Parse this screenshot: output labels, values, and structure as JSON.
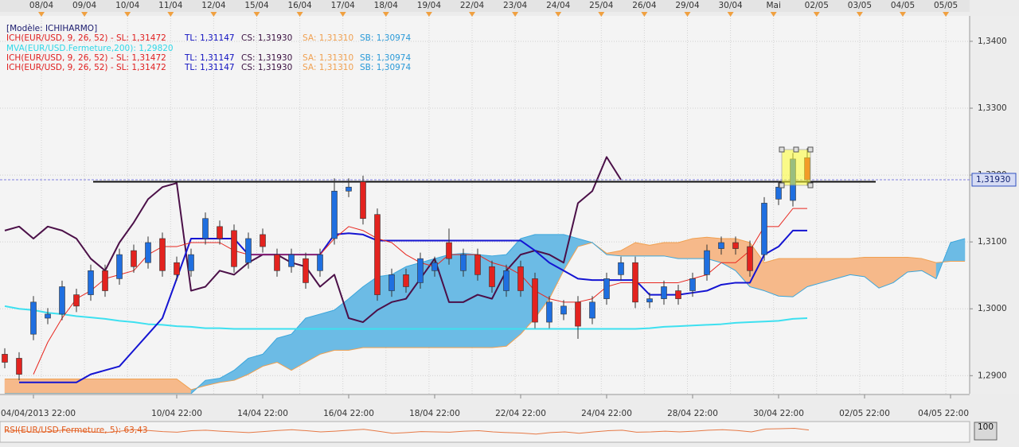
{
  "chart_data": {
    "type": "candlestick",
    "top_dates": [
      "08/04",
      "09/04",
      "10/04",
      "11/04",
      "12/04",
      "15/04",
      "16/04",
      "17/04",
      "18/04",
      "19/04",
      "22/04",
      "23/04",
      "24/04",
      "25/04",
      "26/04",
      "29/04",
      "30/04",
      "Mai",
      "02/05",
      "03/05",
      "04/05",
      "05/05"
    ],
    "legend": [
      [
        {
          "text": "[Modèle: ICHIHARMO]",
          "color": "#1a1a6e"
        }
      ],
      [
        {
          "text": "ICH(EUR/USD, 9, 26, 52) -  SL: 1,31472",
          "color": "#e02020"
        },
        {
          "text": "TL: 1,31147",
          "color": "#1010c0"
        },
        {
          "text": "CS: 1,31930",
          "color": "#3a1040"
        },
        {
          "text": "SA: 1,31310",
          "color": "#f0a050"
        },
        {
          "text": "SB: 1,30974",
          "color": "#2a9ad8"
        }
      ],
      [
        {
          "text": "MVA(EUR/USD.Fermeture,200): 1,29820",
          "color": "#30d8e8"
        }
      ],
      [
        {
          "text": "ICH(EUR/USD, 9, 26, 52) -  SL: 1,31472",
          "color": "#e02020"
        },
        {
          "text": "TL: 1,31147",
          "color": "#1010c0"
        },
        {
          "text": "CS: 1,31930",
          "color": "#3a1040"
        },
        {
          "text": "SA: 1,31310",
          "color": "#f0a050"
        },
        {
          "text": "SB: 1,30974",
          "color": "#2a9ad8"
        }
      ],
      [
        {
          "text": "ICH(EUR/USD, 9, 26, 52) -  SL: 1,31472",
          "color": "#e02020"
        },
        {
          "text": "TL: 1,31147",
          "color": "#1010c0"
        },
        {
          "text": "CS: 1,31930",
          "color": "#3a1040"
        },
        {
          "text": "SA: 1,31310",
          "color": "#f0a050"
        },
        {
          "text": "SB: 1,30974",
          "color": "#2a9ad8"
        }
      ]
    ],
    "categories": [
      null,
      null,
      "04/04/2013 22:00",
      null,
      null,
      null,
      null,
      null,
      null,
      null,
      null,
      null,
      "10/04 22:00",
      null,
      null,
      null,
      null,
      null,
      "14/04 22:00",
      null,
      null,
      null,
      null,
      null,
      "16/04 22:00",
      null,
      null,
      null,
      null,
      null,
      "18/04 22:00",
      null,
      null,
      null,
      null,
      null,
      "22/04 22:00",
      null,
      null,
      null,
      null,
      null,
      "24/04 22:00",
      null,
      null,
      null,
      null,
      null,
      "28/04 22:00",
      null,
      null,
      null,
      null,
      null,
      "30/04 22:00",
      null,
      null,
      null,
      null,
      null,
      "02/05 22:00",
      null,
      null,
      null,
      null,
      null,
      "04/05 22:00",
      null
    ],
    "ylim": [
      1.2873,
      1.3438
    ],
    "yticks": [
      {
        "value": 1.34,
        "label": "1,3400"
      },
      {
        "value": 1.33,
        "label": "1,3300"
      },
      {
        "value": 1.32,
        "label": "1,3200"
      },
      {
        "value": 1.31,
        "label": "1,3100"
      },
      {
        "value": 1.3,
        "label": "1,3000"
      },
      {
        "value": 1.29,
        "label": "1,2900"
      }
    ],
    "grid": true,
    "up_color": "#1f6fe0",
    "down_color": "#e3231f",
    "open": [
      1.2932,
      1.2926,
      1.2962,
      1.2986,
      1.2992,
      1.3021,
      1.3021,
      1.3057,
      1.3045,
      1.3087,
      1.3069,
      1.3105,
      1.3069,
      1.3057,
      1.3105,
      1.3123,
      1.3117,
      1.3069,
      1.3111,
      1.3081,
      1.3063,
      1.3075,
      1.3057,
      1.3105,
      1.3176,
      1.319,
      1.3141,
      1.3027,
      1.3051,
      1.3039,
      1.3057,
      1.3099,
      1.3057,
      1.3081,
      1.3063,
      1.3027,
      1.3063,
      1.3045,
      1.298,
      1.2992,
      1.301,
      1.2986,
      1.3015,
      1.3051,
      1.3069,
      1.301,
      1.3015,
      1.3027,
      1.3027,
      1.3051,
      1.309,
      1.3099,
      1.3093,
      1.3081,
      1.3164,
      1.3162,
      1.3226,
      null,
      null,
      null,
      null,
      null,
      null,
      null,
      null,
      null,
      null,
      null
    ],
    "high": [
      1.2941,
      1.2935,
      1.3019,
      1.3001,
      1.3042,
      1.303,
      1.3066,
      1.3066,
      1.309,
      1.3096,
      1.3108,
      1.3114,
      1.3078,
      1.309,
      1.3144,
      1.3132,
      1.3126,
      1.3114,
      1.312,
      1.309,
      1.309,
      1.3084,
      1.309,
      1.3195,
      1.3195,
      1.3199,
      1.315,
      1.306,
      1.306,
      1.3084,
      1.3078,
      1.312,
      1.309,
      1.309,
      1.3072,
      1.3066,
      1.3072,
      1.3054,
      1.3019,
      1.3013,
      1.3019,
      1.3019,
      1.3054,
      1.3078,
      1.3078,
      1.3024,
      1.3042,
      1.3036,
      1.3054,
      1.3096,
      1.3108,
      1.3108,
      1.3102,
      1.3167,
      1.3191,
      1.3233,
      1.324,
      null,
      null,
      null,
      null,
      null,
      null,
      null,
      null,
      null,
      null,
      null
    ],
    "low": [
      1.2911,
      1.2893,
      1.2953,
      1.2977,
      1.2983,
      1.2995,
      1.3012,
      1.3018,
      1.3036,
      1.3054,
      1.306,
      1.3048,
      1.3042,
      1.3048,
      1.3096,
      1.3096,
      1.3054,
      1.306,
      1.3084,
      1.3048,
      1.3054,
      1.303,
      1.3048,
      1.3096,
      1.3167,
      1.3126,
      1.3012,
      1.3018,
      1.3024,
      1.303,
      1.3048,
      1.3066,
      1.3048,
      1.3042,
      1.3024,
      1.3018,
      1.3018,
      1.2971,
      1.2971,
      1.2983,
      1.2955,
      1.2977,
      1.3006,
      1.3042,
      1.3001,
      1.3001,
      1.3006,
      1.3006,
      1.3018,
      1.3042,
      1.3081,
      1.3081,
      1.3048,
      1.3072,
      1.3155,
      1.3153,
      1.3184,
      null,
      null,
      null,
      null,
      null,
      null,
      null,
      null,
      null,
      null,
      null
    ],
    "close": [
      1.292,
      1.2902,
      1.301,
      1.2992,
      1.3033,
      1.3004,
      1.3057,
      1.3027,
      1.3081,
      1.3063,
      1.3099,
      1.3057,
      1.3051,
      1.3081,
      1.3135,
      1.3105,
      1.3063,
      1.3105,
      1.3093,
      1.3057,
      1.3081,
      1.3039,
      1.3081,
      1.3176,
      1.3182,
      1.3135,
      1.3021,
      1.3051,
      1.3033,
      1.3075,
      1.3069,
      1.3075,
      1.3081,
      1.3051,
      1.3033,
      1.3057,
      1.3027,
      1.298,
      1.301,
      1.3004,
      1.2974,
      1.301,
      1.3045,
      1.3069,
      1.301,
      1.3015,
      1.3033,
      1.3015,
      1.3045,
      1.3087,
      1.3099,
      1.309,
      1.3057,
      1.3158,
      1.3182,
      1.3224,
      1.3193,
      null,
      null,
      null,
      null,
      null,
      null,
      null,
      null,
      null,
      null,
      null
    ],
    "span_a": {
      "color": "#f0a050",
      "fill": "#f6b98a",
      "values": [
        1.2895,
        1.2895,
        1.2895,
        1.2895,
        1.2895,
        1.2895,
        1.2895,
        1.2895,
        1.2895,
        1.2895,
        1.2895,
        1.2895,
        1.2895,
        1.2879,
        1.2885,
        1.289,
        1.2893,
        1.2902,
        1.2914,
        1.292,
        1.2908,
        1.292,
        1.2932,
        1.2938,
        1.2938,
        1.2942,
        1.2942,
        1.2942,
        1.2942,
        1.2942,
        1.2942,
        1.2942,
        1.2942,
        1.2942,
        1.2942,
        1.2944,
        1.2962,
        1.2986,
        1.3015,
        1.3057,
        1.3093,
        1.3099,
        1.3083,
        1.3087,
        1.3099,
        1.3095,
        1.3099,
        1.3099,
        1.3105,
        1.3107,
        1.3105,
        1.3105,
        1.3099,
        1.3069,
        1.3075,
        1.3075,
        1.3075,
        1.3075,
        1.3075,
        1.3075,
        1.3077,
        1.3077,
        1.3077,
        1.3077,
        1.3075,
        1.3069,
        1.3071,
        1.3071
      ]
    },
    "span_b": {
      "color": "#3aa6dc",
      "fill": "#6cbbe5",
      "values": [
        1.2873,
        1.2873,
        1.2873,
        1.2873,
        1.2873,
        1.2873,
        1.2873,
        1.2873,
        1.2873,
        1.2873,
        1.2873,
        1.2873,
        1.2873,
        1.2873,
        1.2893,
        1.2896,
        1.2908,
        1.2926,
        1.2932,
        1.2956,
        1.2962,
        1.2986,
        1.2992,
        1.2998,
        1.3015,
        1.3033,
        1.3048,
        1.3051,
        1.3063,
        1.3069,
        1.3075,
        1.3081,
        1.3083,
        1.3081,
        1.3079,
        1.3081,
        1.3105,
        1.3111,
        1.3111,
        1.3111,
        1.3105,
        1.3099,
        1.3081,
        1.3079,
        1.3079,
        1.3079,
        1.3079,
        1.3075,
        1.3075,
        1.3075,
        1.3069,
        1.3057,
        1.3033,
        1.3027,
        1.3019,
        1.3018,
        1.3033,
        1.3039,
        1.3045,
        1.3051,
        1.3048,
        1.3031,
        1.3039,
        1.3055,
        1.3057,
        1.3045,
        1.3099,
        1.3105
      ]
    },
    "lines": [
      {
        "color": "#3de0f0",
        "width": 2,
        "values": [
          1.3004,
          1.3,
          1.2998,
          1.2994,
          1.2992,
          1.2989,
          1.2987,
          1.2985,
          1.2982,
          1.298,
          1.2977,
          1.2976,
          1.2974,
          1.2973,
          1.2971,
          1.2971,
          1.297,
          1.297,
          1.297,
          1.297,
          1.297,
          1.297,
          1.297,
          1.297,
          1.297,
          1.297,
          1.297,
          1.297,
          1.297,
          1.297,
          1.297,
          1.297,
          1.297,
          1.297,
          1.297,
          1.297,
          1.297,
          1.297,
          1.297,
          1.297,
          1.297,
          1.297,
          1.297,
          1.297,
          1.297,
          1.2971,
          1.2973,
          1.2974,
          1.2975,
          1.2976,
          1.2977,
          1.2979,
          1.298,
          1.2981,
          1.2982,
          1.2985,
          1.2986,
          null,
          null,
          null,
          null,
          null,
          null,
          null,
          null,
          null,
          null,
          null
        ]
      },
      {
        "color": "#4b1048",
        "width": 2,
        "values": [
          1.3117,
          1.3123,
          1.3105,
          1.3123,
          1.3117,
          1.3105,
          1.3075,
          1.3057,
          1.3099,
          1.3129,
          1.3164,
          1.3182,
          1.3188,
          1.3027,
          1.3033,
          1.3057,
          1.3051,
          1.3069,
          1.3081,
          1.3081,
          1.3069,
          1.3063,
          1.3033,
          1.3051,
          1.2986,
          1.298,
          1.2998,
          1.301,
          1.3015,
          1.3045,
          1.3075,
          1.301,
          1.301,
          1.3021,
          1.3015,
          1.3057,
          1.3081,
          1.3087,
          1.3081,
          1.3069,
          1.3158,
          1.3176,
          1.3227,
          1.3193,
          null,
          null,
          null,
          null,
          null,
          null,
          null,
          null,
          null,
          null,
          null,
          null,
          null,
          null,
          null,
          null,
          null,
          null,
          null,
          null,
          null,
          null,
          null,
          null
        ]
      },
      {
        "color": "#1414d2",
        "width": 2,
        "values": [
          null,
          1.289,
          1.289,
          1.289,
          1.289,
          1.289,
          1.2902,
          1.2908,
          1.2914,
          1.2938,
          1.2962,
          1.2986,
          1.3045,
          1.3105,
          1.3105,
          1.3105,
          1.3105,
          1.3081,
          1.3081,
          1.3081,
          1.3081,
          1.3081,
          1.3081,
          1.3111,
          1.3113,
          1.3111,
          1.3102,
          1.3102,
          1.3102,
          1.3102,
          1.3102,
          1.3102,
          1.3102,
          1.3102,
          1.3102,
          1.3102,
          1.3102,
          1.3087,
          1.3069,
          1.3057,
          1.3045,
          1.3043,
          1.3043,
          1.3043,
          1.3043,
          1.3021,
          1.3021,
          1.3021,
          1.3024,
          1.3027,
          1.3036,
          1.3039,
          1.3039,
          1.3081,
          1.3093,
          1.3117,
          1.3117,
          null,
          null,
          null,
          null,
          null,
          null,
          null,
          null,
          null,
          null,
          null
        ]
      },
      {
        "color": "#e8261e",
        "width": 1,
        "values": [
          null,
          null,
          1.2902,
          1.295,
          1.2986,
          1.3015,
          1.3027,
          1.3045,
          1.3051,
          1.3057,
          1.3081,
          1.3093,
          1.3093,
          1.3099,
          1.3099,
          1.3099,
          1.3087,
          1.3081,
          1.3081,
          1.3081,
          1.3081,
          1.3081,
          1.3081,
          1.3105,
          1.3123,
          1.3117,
          1.3105,
          1.3099,
          1.3081,
          1.3069,
          1.3063,
          1.3081,
          1.3081,
          1.3081,
          1.3069,
          1.3063,
          1.3051,
          1.3027,
          1.3015,
          1.301,
          1.301,
          1.3015,
          1.3033,
          1.3039,
          1.3039,
          1.3039,
          1.3039,
          1.3039,
          1.3045,
          1.3051,
          1.3069,
          1.3069,
          1.3087,
          1.3123,
          1.3123,
          1.315,
          1.315,
          null,
          null,
          null,
          null,
          null,
          null,
          null,
          null,
          null,
          null,
          null
        ]
      }
    ],
    "trendline": {
      "value": 1.319,
      "color": "#111111"
    },
    "last_price": {
      "value": 1.3193,
      "label": "1,31930"
    },
    "rsi": {
      "label": "RSI(EUR/USD.Fermeture, 5): 63,43",
      "color": "#e25a1a",
      "ylim": [
        0,
        100
      ],
      "yticks": [
        100
      ],
      "values": [
        55,
        60,
        48,
        52,
        62,
        58,
        50,
        45,
        55,
        65,
        60,
        52,
        48,
        58,
        62,
        55,
        50,
        45,
        52,
        60,
        65,
        58,
        50,
        55,
        62,
        68,
        55,
        40,
        45,
        52,
        50,
        48,
        55,
        58,
        50,
        45,
        42,
        35,
        45,
        50,
        40,
        50,
        58,
        62,
        48,
        50,
        55,
        50,
        55,
        62,
        65,
        60,
        50,
        70,
        72,
        75,
        63.43
      ]
    }
  }
}
